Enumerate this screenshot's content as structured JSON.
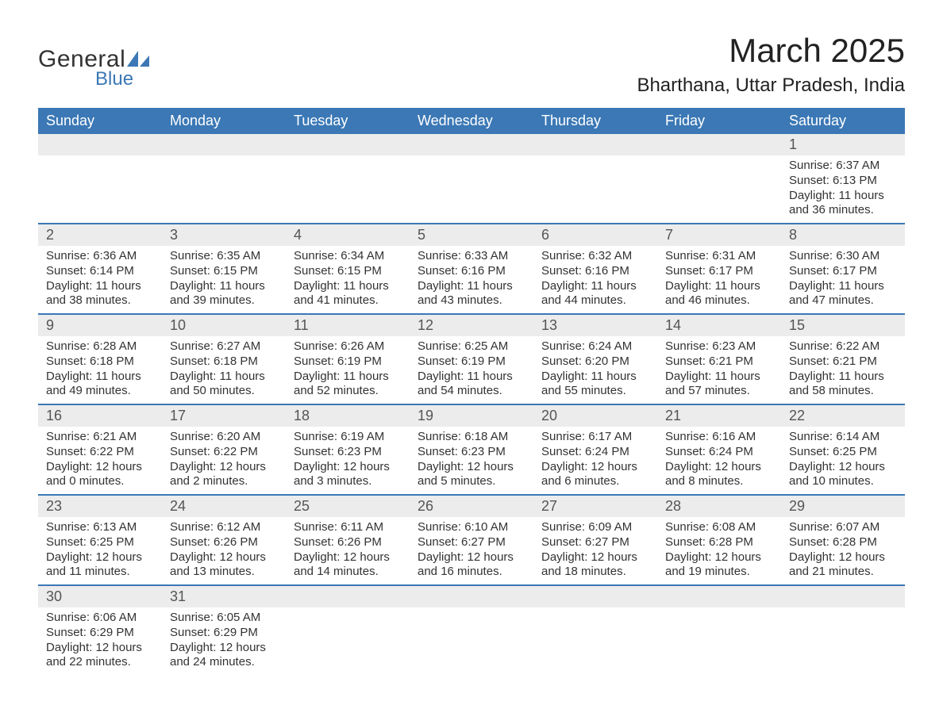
{
  "logo": {
    "general": "General",
    "blue": "Blue",
    "shape_color": "#3b78b5"
  },
  "header": {
    "month_title": "March 2025",
    "location": "Bharthana, Uttar Pradesh, India"
  },
  "calendar": {
    "type": "table",
    "header_bg": "#3b78b5",
    "header_text_color": "#ffffff",
    "row_divider_color": "#3b78b5",
    "daynum_bg": "#ececec",
    "body_text_color": "#333333",
    "font_family": "Arial",
    "title_fontsize": 42,
    "location_fontsize": 24,
    "weekday_fontsize": 18,
    "daynum_fontsize": 18,
    "body_fontsize": 15,
    "weekdays": [
      "Sunday",
      "Monday",
      "Tuesday",
      "Wednesday",
      "Thursday",
      "Friday",
      "Saturday"
    ],
    "weeks": [
      [
        {
          "empty": true
        },
        {
          "empty": true
        },
        {
          "empty": true
        },
        {
          "empty": true
        },
        {
          "empty": true
        },
        {
          "empty": true
        },
        {
          "day": "1",
          "sunrise": "Sunrise: 6:37 AM",
          "sunset": "Sunset: 6:13 PM",
          "daylight1": "Daylight: 11 hours",
          "daylight2": "and 36 minutes."
        }
      ],
      [
        {
          "day": "2",
          "sunrise": "Sunrise: 6:36 AM",
          "sunset": "Sunset: 6:14 PM",
          "daylight1": "Daylight: 11 hours",
          "daylight2": "and 38 minutes."
        },
        {
          "day": "3",
          "sunrise": "Sunrise: 6:35 AM",
          "sunset": "Sunset: 6:15 PM",
          "daylight1": "Daylight: 11 hours",
          "daylight2": "and 39 minutes."
        },
        {
          "day": "4",
          "sunrise": "Sunrise: 6:34 AM",
          "sunset": "Sunset: 6:15 PM",
          "daylight1": "Daylight: 11 hours",
          "daylight2": "and 41 minutes."
        },
        {
          "day": "5",
          "sunrise": "Sunrise: 6:33 AM",
          "sunset": "Sunset: 6:16 PM",
          "daylight1": "Daylight: 11 hours",
          "daylight2": "and 43 minutes."
        },
        {
          "day": "6",
          "sunrise": "Sunrise: 6:32 AM",
          "sunset": "Sunset: 6:16 PM",
          "daylight1": "Daylight: 11 hours",
          "daylight2": "and 44 minutes."
        },
        {
          "day": "7",
          "sunrise": "Sunrise: 6:31 AM",
          "sunset": "Sunset: 6:17 PM",
          "daylight1": "Daylight: 11 hours",
          "daylight2": "and 46 minutes."
        },
        {
          "day": "8",
          "sunrise": "Sunrise: 6:30 AM",
          "sunset": "Sunset: 6:17 PM",
          "daylight1": "Daylight: 11 hours",
          "daylight2": "and 47 minutes."
        }
      ],
      [
        {
          "day": "9",
          "sunrise": "Sunrise: 6:28 AM",
          "sunset": "Sunset: 6:18 PM",
          "daylight1": "Daylight: 11 hours",
          "daylight2": "and 49 minutes."
        },
        {
          "day": "10",
          "sunrise": "Sunrise: 6:27 AM",
          "sunset": "Sunset: 6:18 PM",
          "daylight1": "Daylight: 11 hours",
          "daylight2": "and 50 minutes."
        },
        {
          "day": "11",
          "sunrise": "Sunrise: 6:26 AM",
          "sunset": "Sunset: 6:19 PM",
          "daylight1": "Daylight: 11 hours",
          "daylight2": "and 52 minutes."
        },
        {
          "day": "12",
          "sunrise": "Sunrise: 6:25 AM",
          "sunset": "Sunset: 6:19 PM",
          "daylight1": "Daylight: 11 hours",
          "daylight2": "and 54 minutes."
        },
        {
          "day": "13",
          "sunrise": "Sunrise: 6:24 AM",
          "sunset": "Sunset: 6:20 PM",
          "daylight1": "Daylight: 11 hours",
          "daylight2": "and 55 minutes."
        },
        {
          "day": "14",
          "sunrise": "Sunrise: 6:23 AM",
          "sunset": "Sunset: 6:21 PM",
          "daylight1": "Daylight: 11 hours",
          "daylight2": "and 57 minutes."
        },
        {
          "day": "15",
          "sunrise": "Sunrise: 6:22 AM",
          "sunset": "Sunset: 6:21 PM",
          "daylight1": "Daylight: 11 hours",
          "daylight2": "and 58 minutes."
        }
      ],
      [
        {
          "day": "16",
          "sunrise": "Sunrise: 6:21 AM",
          "sunset": "Sunset: 6:22 PM",
          "daylight1": "Daylight: 12 hours",
          "daylight2": "and 0 minutes."
        },
        {
          "day": "17",
          "sunrise": "Sunrise: 6:20 AM",
          "sunset": "Sunset: 6:22 PM",
          "daylight1": "Daylight: 12 hours",
          "daylight2": "and 2 minutes."
        },
        {
          "day": "18",
          "sunrise": "Sunrise: 6:19 AM",
          "sunset": "Sunset: 6:23 PM",
          "daylight1": "Daylight: 12 hours",
          "daylight2": "and 3 minutes."
        },
        {
          "day": "19",
          "sunrise": "Sunrise: 6:18 AM",
          "sunset": "Sunset: 6:23 PM",
          "daylight1": "Daylight: 12 hours",
          "daylight2": "and 5 minutes."
        },
        {
          "day": "20",
          "sunrise": "Sunrise: 6:17 AM",
          "sunset": "Sunset: 6:24 PM",
          "daylight1": "Daylight: 12 hours",
          "daylight2": "and 6 minutes."
        },
        {
          "day": "21",
          "sunrise": "Sunrise: 6:16 AM",
          "sunset": "Sunset: 6:24 PM",
          "daylight1": "Daylight: 12 hours",
          "daylight2": "and 8 minutes."
        },
        {
          "day": "22",
          "sunrise": "Sunrise: 6:14 AM",
          "sunset": "Sunset: 6:25 PM",
          "daylight1": "Daylight: 12 hours",
          "daylight2": "and 10 minutes."
        }
      ],
      [
        {
          "day": "23",
          "sunrise": "Sunrise: 6:13 AM",
          "sunset": "Sunset: 6:25 PM",
          "daylight1": "Daylight: 12 hours",
          "daylight2": "and 11 minutes."
        },
        {
          "day": "24",
          "sunrise": "Sunrise: 6:12 AM",
          "sunset": "Sunset: 6:26 PM",
          "daylight1": "Daylight: 12 hours",
          "daylight2": "and 13 minutes."
        },
        {
          "day": "25",
          "sunrise": "Sunrise: 6:11 AM",
          "sunset": "Sunset: 6:26 PM",
          "daylight1": "Daylight: 12 hours",
          "daylight2": "and 14 minutes."
        },
        {
          "day": "26",
          "sunrise": "Sunrise: 6:10 AM",
          "sunset": "Sunset: 6:27 PM",
          "daylight1": "Daylight: 12 hours",
          "daylight2": "and 16 minutes."
        },
        {
          "day": "27",
          "sunrise": "Sunrise: 6:09 AM",
          "sunset": "Sunset: 6:27 PM",
          "daylight1": "Daylight: 12 hours",
          "daylight2": "and 18 minutes."
        },
        {
          "day": "28",
          "sunrise": "Sunrise: 6:08 AM",
          "sunset": "Sunset: 6:28 PM",
          "daylight1": "Daylight: 12 hours",
          "daylight2": "and 19 minutes."
        },
        {
          "day": "29",
          "sunrise": "Sunrise: 6:07 AM",
          "sunset": "Sunset: 6:28 PM",
          "daylight1": "Daylight: 12 hours",
          "daylight2": "and 21 minutes."
        }
      ],
      [
        {
          "day": "30",
          "sunrise": "Sunrise: 6:06 AM",
          "sunset": "Sunset: 6:29 PM",
          "daylight1": "Daylight: 12 hours",
          "daylight2": "and 22 minutes."
        },
        {
          "day": "31",
          "sunrise": "Sunrise: 6:05 AM",
          "sunset": "Sunset: 6:29 PM",
          "daylight1": "Daylight: 12 hours",
          "daylight2": "and 24 minutes."
        },
        {
          "empty": true
        },
        {
          "empty": true
        },
        {
          "empty": true
        },
        {
          "empty": true
        },
        {
          "empty": true
        }
      ]
    ]
  }
}
